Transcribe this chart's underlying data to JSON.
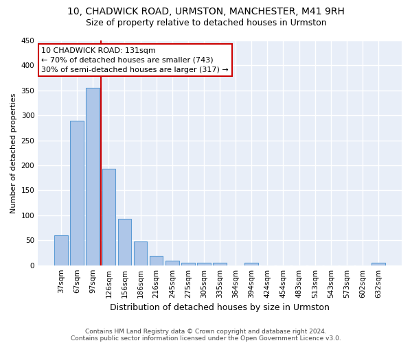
{
  "title1": "10, CHADWICK ROAD, URMSTON, MANCHESTER, M41 9RH",
  "title2": "Size of property relative to detached houses in Urmston",
  "xlabel": "Distribution of detached houses by size in Urmston",
  "ylabel": "Number of detached properties",
  "categories": [
    "37sqm",
    "67sqm",
    "97sqm",
    "126sqm",
    "156sqm",
    "186sqm",
    "216sqm",
    "245sqm",
    "275sqm",
    "305sqm",
    "335sqm",
    "364sqm",
    "394sqm",
    "424sqm",
    "454sqm",
    "483sqm",
    "513sqm",
    "543sqm",
    "573sqm",
    "602sqm",
    "632sqm"
  ],
  "values": [
    60,
    290,
    355,
    193,
    93,
    47,
    19,
    9,
    5,
    5,
    5,
    0,
    5,
    0,
    0,
    0,
    0,
    0,
    0,
    0,
    5
  ],
  "bar_color": "#aec6e8",
  "bar_edge_color": "#5b9bd5",
  "vline_x_index": 2.5,
  "annotation_line1": "10 CHADWICK ROAD: 131sqm",
  "annotation_line2": "← 70% of detached houses are smaller (743)",
  "annotation_line3": "30% of semi-detached houses are larger (317) →",
  "annotation_box_color": "#ffffff",
  "annotation_box_edge": "#cc0000",
  "vline_color": "#cc0000",
  "ylim": [
    0,
    450
  ],
  "plot_bg_color": "#e8eef8",
  "fig_bg_color": "#ffffff",
  "grid_color": "#ffffff",
  "footer1": "Contains HM Land Registry data © Crown copyright and database right 2024.",
  "footer2": "Contains public sector information licensed under the Open Government Licence v3.0.",
  "title_fontsize": 10,
  "subtitle_fontsize": 9,
  "footer_fontsize": 6.5,
  "bar_width": 0.85,
  "ylabel_fontsize": 8,
  "xlabel_fontsize": 9,
  "tick_fontsize": 7.5,
  "annot_fontsize": 8
}
